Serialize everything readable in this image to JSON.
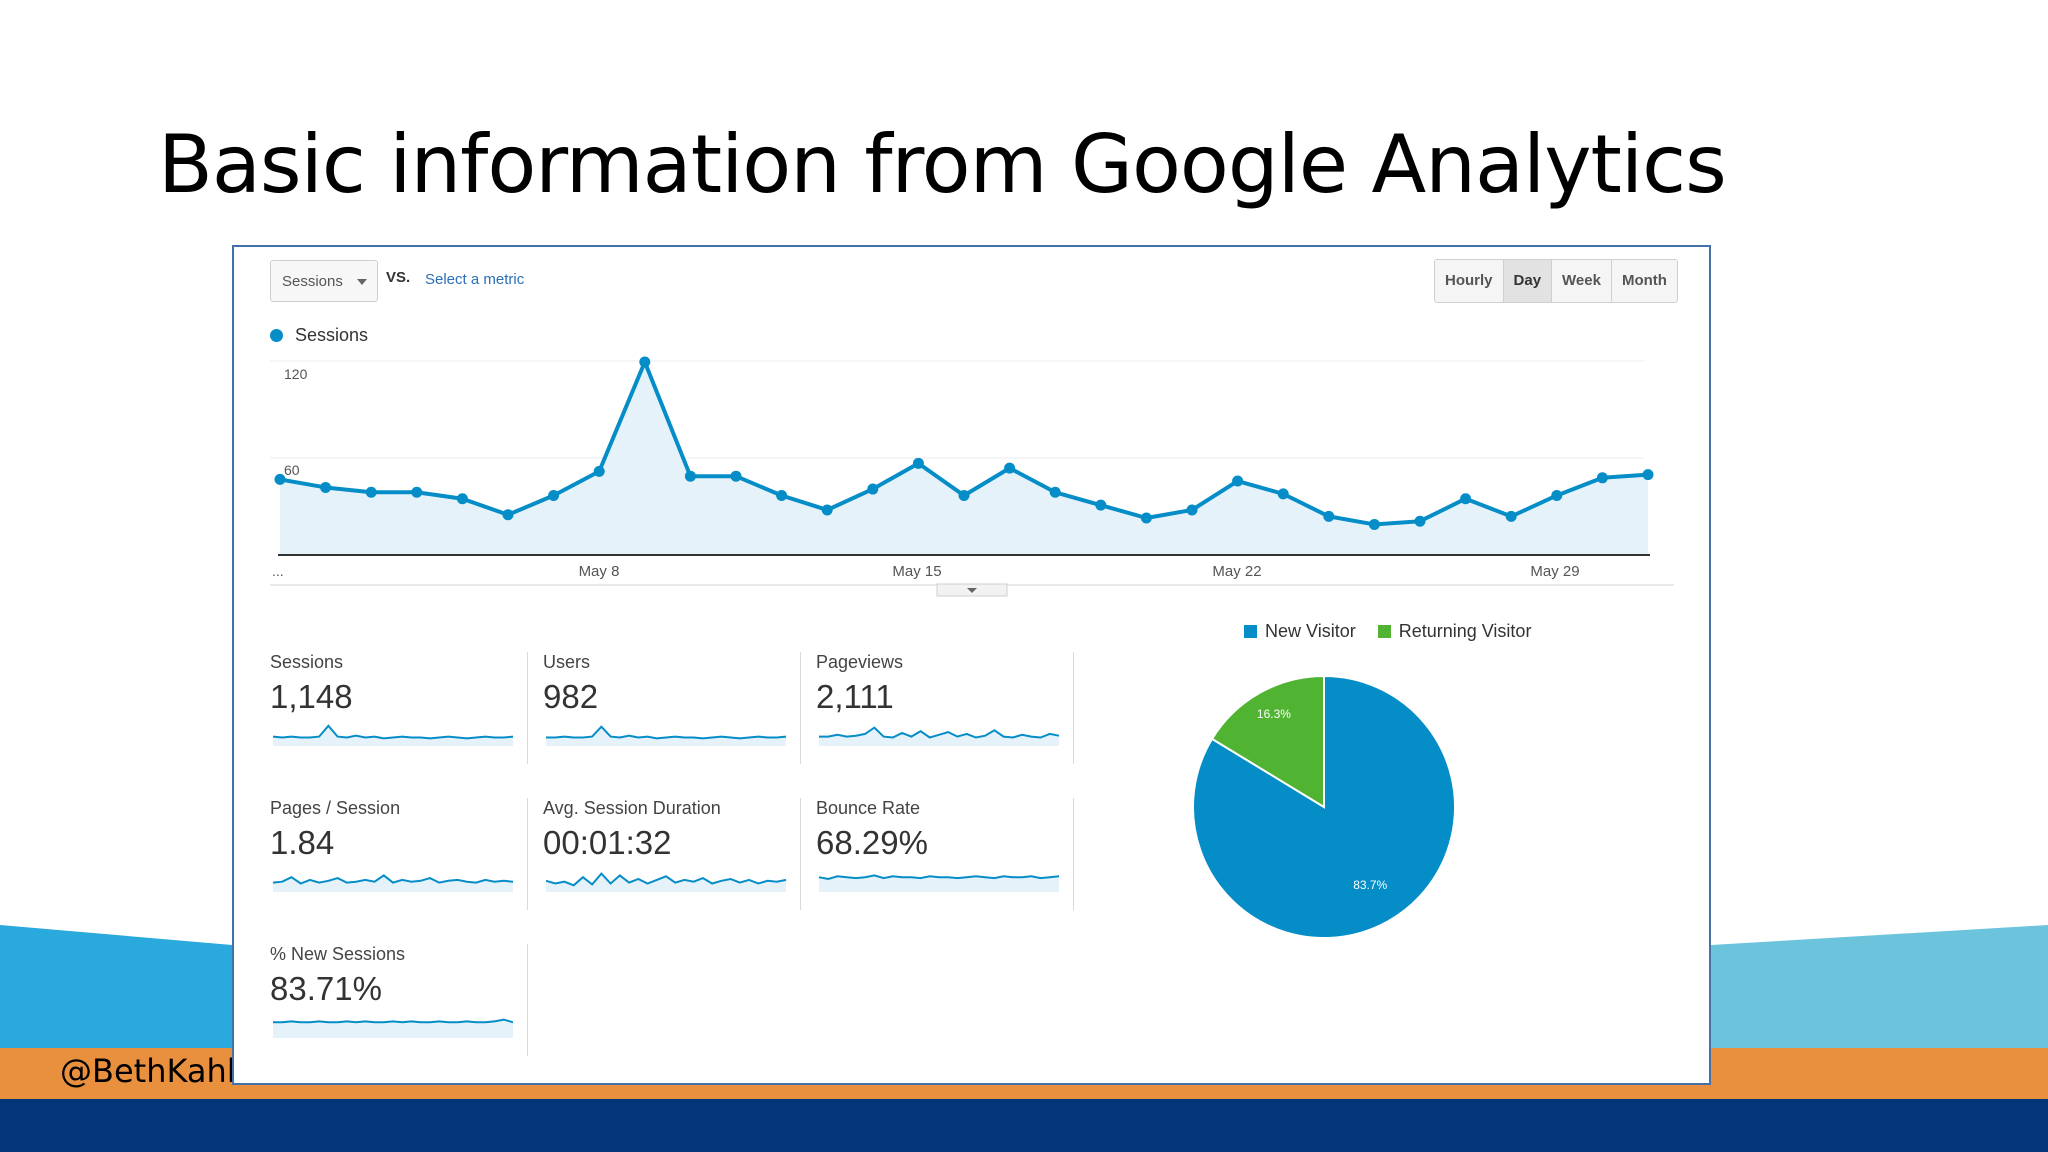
{
  "slide": {
    "title": "Basic information from Google Analytics",
    "handle": "@BethKahl"
  },
  "toolbar": {
    "metric_select": "Sessions",
    "vs_label": "VS.",
    "select_metric_link": "Select a metric",
    "granularity": [
      "Hourly",
      "Day",
      "Week",
      "Month"
    ],
    "granularity_active": "Day"
  },
  "colors": {
    "series": "#058dc7",
    "new_visitor": "#058dc7",
    "returning_visitor": "#50b432",
    "band_blue": "#29a9dc",
    "band_orange": "#e9903f",
    "band_navy": "#053679"
  },
  "chart_data": [
    {
      "type": "area",
      "series": [
        {
          "name": "Sessions",
          "values": [
            47,
            42,
            39,
            39,
            35,
            25,
            37,
            52,
            120,
            49,
            49,
            37,
            28,
            41,
            57,
            37,
            54,
            39,
            31,
            23,
            28,
            46,
            38,
            24,
            19,
            21,
            35,
            24,
            37,
            48,
            50
          ]
        }
      ],
      "x_tick_labels": [
        "...",
        "May 8",
        "May 15",
        "May 22",
        "May 29"
      ],
      "y_tick_labels": [
        "120",
        "60"
      ],
      "ylim": [
        0,
        120
      ],
      "grid": true
    },
    {
      "type": "pie",
      "legend_position": "top",
      "slices": [
        {
          "name": "New Visitor",
          "value": 83.7,
          "label": "83.7%"
        },
        {
          "name": "Returning Visitor",
          "value": 16.3,
          "label": "16.3%"
        }
      ]
    }
  ],
  "metrics": [
    {
      "label": "Sessions",
      "value": "1,148",
      "spark": [
        6,
        5,
        6,
        5,
        5,
        6,
        18,
        6,
        5,
        7,
        5,
        6,
        4,
        5,
        6,
        5,
        5,
        4,
        5,
        6,
        5,
        4,
        5,
        6,
        5,
        5,
        6
      ]
    },
    {
      "label": "Users",
      "value": "982",
      "spark": [
        5,
        5,
        6,
        5,
        5,
        6,
        17,
        6,
        5,
        7,
        5,
        6,
        4,
        5,
        6,
        5,
        5,
        4,
        5,
        6,
        5,
        4,
        5,
        6,
        5,
        5,
        6
      ]
    },
    {
      "label": "Pageviews",
      "value": "2,111",
      "spark": [
        6,
        6,
        8,
        6,
        7,
        9,
        16,
        6,
        5,
        10,
        6,
        12,
        5,
        8,
        11,
        6,
        9,
        5,
        7,
        13,
        6,
        5,
        8,
        6,
        5,
        9,
        7
      ]
    },
    {
      "label": "Pages / Session",
      "value": "1.84",
      "spark": [
        6,
        7,
        12,
        5,
        9,
        6,
        8,
        11,
        6,
        7,
        9,
        7,
        14,
        6,
        9,
        7,
        8,
        11,
        6,
        8,
        9,
        7,
        6,
        9,
        7,
        8,
        7
      ]
    },
    {
      "label": "Avg. Session Duration",
      "value": "00:01:32",
      "spark": [
        8,
        5,
        7,
        3,
        12,
        4,
        16,
        5,
        14,
        6,
        10,
        5,
        9,
        13,
        6,
        9,
        7,
        11,
        5,
        8,
        10,
        6,
        9,
        5,
        8,
        7,
        9
      ]
    },
    {
      "label": "Bounce Rate",
      "value": "68.29%",
      "spark": [
        12,
        10,
        13,
        12,
        11,
        12,
        14,
        11,
        13,
        12,
        12,
        11,
        13,
        12,
        12,
        11,
        12,
        13,
        12,
        11,
        13,
        12,
        12,
        13,
        11,
        12,
        13
      ]
    },
    {
      "label": "% New Sessions",
      "value": "83.71%",
      "spark": [
        13,
        13,
        14,
        13,
        13,
        14,
        13,
        13,
        14,
        13,
        14,
        13,
        13,
        14,
        13,
        14,
        13,
        13,
        14,
        13,
        13,
        14,
        13,
        13,
        14,
        16,
        13
      ]
    }
  ]
}
